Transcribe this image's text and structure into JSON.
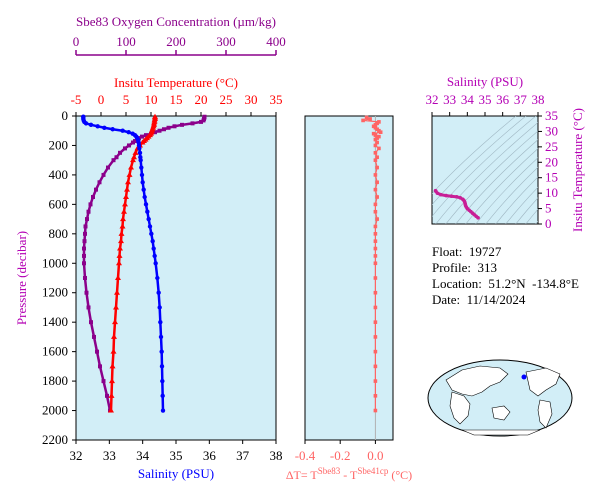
{
  "colors": {
    "panel_bg": "#d2eef7",
    "oxygen": "#8b008b",
    "temperature": "#ff0000",
    "salinity": "#0000ff",
    "dt": "#ff6464",
    "ts": "#c81e96",
    "magenta": "#b400b4"
  },
  "info": {
    "float_label": "Float:",
    "float_value": "19727",
    "profile_label": "Profile:",
    "profile_value": "313",
    "location_label": "Location:",
    "location_value": "51.2°N  -134.8°E",
    "date_label": "Date:",
    "date_value": "11/14/2024"
  },
  "chart_data": [
    {
      "type": "line",
      "panel": "profile",
      "ylabel": "Pressure (decibar)",
      "ylim": [
        2200,
        0
      ],
      "yticks": [
        "0",
        "200",
        "400",
        "600",
        "800",
        "1000",
        "1200",
        "1400",
        "1600",
        "1800",
        "2000",
        "2200"
      ],
      "oxygen_axis": {
        "label": "Sbe83 Oxygen Concentration (µm/kg)",
        "lim": [
          0,
          400
        ],
        "ticks": [
          "0",
          "100",
          "200",
          "300",
          "400"
        ]
      },
      "temperature_axis": {
        "label": "Insitu Temperature (°C)",
        "lim": [
          -5,
          35
        ],
        "ticks": [
          "-5",
          "0",
          "5",
          "10",
          "15",
          "20",
          "25",
          "30",
          "35"
        ]
      },
      "salinity_axis": {
        "label": "Salinity (PSU)",
        "lim": [
          32,
          38
        ],
        "ticks": [
          "32",
          "33",
          "34",
          "35",
          "36",
          "37",
          "38"
        ]
      },
      "series": [
        {
          "id": "oxygen",
          "units": "µm/kg",
          "pressure": [
            5,
            10,
            20,
            30,
            40,
            50,
            60,
            70,
            80,
            90,
            100,
            110,
            120,
            130,
            140,
            150,
            160,
            170,
            180,
            200,
            220,
            250,
            280,
            300,
            350,
            400,
            450,
            500,
            550,
            600,
            650,
            700,
            750,
            800,
            850,
            900,
            950,
            1000,
            1100,
            1200,
            1300,
            1400,
            1500,
            1600,
            1700,
            1800,
            1900,
            2000
          ],
          "values": [
            257,
            257,
            256,
            255,
            250,
            233,
            212,
            197,
            185,
            176,
            167,
            158,
            150,
            140,
            132,
            126,
            122,
            118,
            114,
            106,
            98,
            88,
            81,
            75,
            64,
            55,
            47,
            40,
            34,
            29,
            25,
            22,
            19,
            18,
            17,
            16,
            16,
            16,
            18,
            21,
            25,
            30,
            36,
            42,
            48,
            55,
            62,
            68
          ]
        },
        {
          "id": "temperature",
          "units": "°C",
          "pressure": [
            5,
            10,
            20,
            30,
            40,
            50,
            60,
            70,
            80,
            90,
            100,
            110,
            120,
            130,
            140,
            150,
            160,
            170,
            180,
            200,
            220,
            250,
            280,
            300,
            350,
            400,
            450,
            500,
            550,
            600,
            650,
            700,
            750,
            800,
            850,
            900,
            950,
            1000,
            1100,
            1200,
            1300,
            1400,
            1500,
            1600,
            1700,
            1800,
            1900,
            2000
          ],
          "values": [
            10.8,
            10.8,
            10.8,
            10.7,
            10.7,
            10.6,
            10.6,
            10.5,
            10.4,
            10.3,
            10.2,
            10.1,
            10.0,
            9.8,
            9.5,
            9.2,
            8.9,
            8.6,
            8.3,
            7.8,
            7.3,
            6.9,
            6.6,
            6.4,
            6.0,
            5.7,
            5.4,
            5.2,
            5.0,
            4.8,
            4.6,
            4.4,
            4.3,
            4.1,
            4.0,
            3.8,
            3.7,
            3.6,
            3.4,
            3.2,
            3.0,
            2.8,
            2.6,
            2.5,
            2.3,
            2.2,
            2.1,
            2.0
          ]
        },
        {
          "id": "salinity",
          "units": "PSU",
          "pressure": [
            5,
            10,
            20,
            30,
            40,
            50,
            60,
            70,
            80,
            90,
            100,
            110,
            120,
            130,
            140,
            150,
            160,
            170,
            180,
            200,
            220,
            250,
            280,
            300,
            350,
            400,
            450,
            500,
            550,
            600,
            650,
            700,
            750,
            800,
            850,
            900,
            950,
            1000,
            1100,
            1200,
            1300,
            1400,
            1500,
            1600,
            1700,
            1800,
            1900,
            2000
          ],
          "values": [
            32.22,
            32.22,
            32.22,
            32.23,
            32.25,
            32.3,
            32.45,
            32.65,
            32.85,
            33.1,
            33.4,
            33.58,
            33.7,
            33.77,
            33.81,
            33.84,
            33.86,
            33.87,
            33.88,
            33.89,
            33.9,
            33.92,
            33.93,
            33.94,
            33.96,
            33.98,
            34.0,
            34.03,
            34.06,
            34.1,
            34.14,
            34.18,
            34.22,
            34.26,
            34.3,
            34.33,
            34.36,
            34.39,
            34.44,
            34.48,
            34.51,
            34.53,
            34.55,
            34.57,
            34.58,
            34.59,
            34.6,
            34.61
          ]
        }
      ]
    },
    {
      "type": "scatter",
      "panel": "dt",
      "xlabel": "ΔT= T",
      "xlabel_sup1": "Sbe83",
      "xlabel_mid": " - T",
      "xlabel_sup2": "Sbe41cp",
      "xlabel_units": " (°C)",
      "xlim": [
        -0.4,
        0.1
      ],
      "xticks": [
        "-0.4",
        "-0.2",
        "0.0"
      ],
      "ylim": [
        2200,
        0
      ],
      "series": [
        {
          "id": "dt",
          "pressure": [
            10,
            20,
            30,
            40,
            50,
            60,
            70,
            80,
            90,
            100,
            110,
            120,
            130,
            140,
            150,
            160,
            180,
            200,
            220,
            250,
            280,
            300,
            350,
            400,
            450,
            500,
            550,
            600,
            650,
            700,
            750,
            800,
            850,
            900,
            950,
            1000,
            1100,
            1200,
            1300,
            1400,
            1500,
            1600,
            1700,
            1800,
            1900,
            2000
          ],
          "values": [
            -0.05,
            -0.03,
            -0.07,
            0.02,
            0.01,
            0.0,
            -0.01,
            0.0,
            0.01,
            0.02,
            0.03,
            -0.01,
            0.0,
            0.02,
            0.01,
            0.0,
            0.01,
            0.0,
            0.02,
            0.0,
            0.01,
            0.0,
            0.01,
            0.0,
            0.01,
            0.0,
            0.01,
            0.0,
            0.0,
            0.01,
            0.0,
            0.0,
            0.0,
            0.0,
            0.0,
            0.0,
            0.0,
            0.0,
            0.0,
            0.0,
            0.0,
            0.0,
            0.0,
            0.0,
            0.0,
            0.0
          ]
        }
      ]
    },
    {
      "type": "scatter",
      "panel": "ts",
      "xlabel": "Salinity (PSU)",
      "ylabel": "Insitu Temperature (°C)",
      "xlim": [
        32,
        38
      ],
      "ylim": [
        0,
        35
      ],
      "xticks": [
        "32",
        "33",
        "34",
        "35",
        "36",
        "37",
        "38"
      ],
      "yticks": [
        "0",
        "5",
        "10",
        "15",
        "20",
        "25",
        "30",
        "35"
      ],
      "series": [
        {
          "id": "ts",
          "x": [
            32.2,
            32.22,
            32.3,
            32.5,
            32.8,
            33.1,
            33.4,
            33.6,
            33.75,
            33.82,
            33.86,
            33.88,
            33.9,
            33.94,
            34.0,
            34.1,
            34.2,
            34.3,
            34.4,
            34.5,
            34.61
          ],
          "y": [
            10.8,
            10.6,
            10.0,
            9.5,
            9.2,
            9.0,
            8.8,
            8.5,
            8.0,
            7.5,
            7.0,
            6.5,
            6.0,
            5.5,
            5.0,
            4.5,
            4.0,
            3.5,
            3.0,
            2.5,
            2.0
          ]
        }
      ]
    }
  ]
}
